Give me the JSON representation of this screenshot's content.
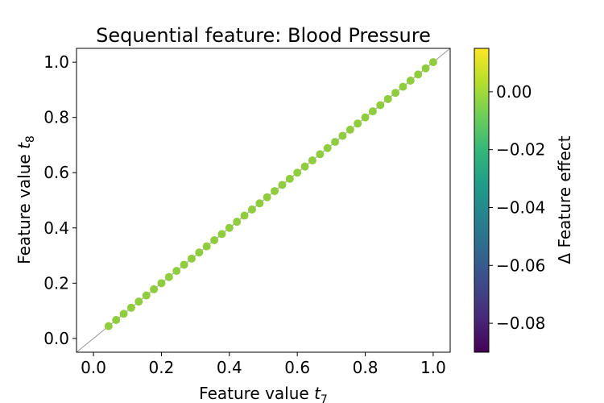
{
  "chart_data": {
    "type": "scatter",
    "title": "Sequential feature: Blood Pressure",
    "xlabel": {
      "main": "Feature value ",
      "italic": "t",
      "sub": "7"
    },
    "ylabel": {
      "main": "Feature value ",
      "italic": "t",
      "sub": "8"
    },
    "xlim": [
      -0.05,
      1.05
    ],
    "ylim": [
      -0.05,
      1.05
    ],
    "xticks": [
      "0.0",
      "0.2",
      "0.4",
      "0.6",
      "0.8",
      "1.0"
    ],
    "yticks": [
      "0.0",
      "0.2",
      "0.4",
      "0.6",
      "0.8",
      "1.0"
    ],
    "reference_line": "y = x",
    "grid": false,
    "marker_color": "#8fcd3e",
    "reference_line_color": "#999999",
    "points": [
      [
        0.0444,
        0.0444
      ],
      [
        0.0667,
        0.0667
      ],
      [
        0.0889,
        0.0889
      ],
      [
        0.1111,
        0.1111
      ],
      [
        0.1333,
        0.1333
      ],
      [
        0.1556,
        0.1556
      ],
      [
        0.1778,
        0.1778
      ],
      [
        0.2,
        0.2
      ],
      [
        0.2222,
        0.2222
      ],
      [
        0.2444,
        0.2444
      ],
      [
        0.2667,
        0.2667
      ],
      [
        0.2889,
        0.2889
      ],
      [
        0.3111,
        0.3111
      ],
      [
        0.3333,
        0.3333
      ],
      [
        0.3556,
        0.3556
      ],
      [
        0.3778,
        0.3778
      ],
      [
        0.4,
        0.4
      ],
      [
        0.4222,
        0.4222
      ],
      [
        0.4444,
        0.4444
      ],
      [
        0.4667,
        0.4667
      ],
      [
        0.4889,
        0.4889
      ],
      [
        0.5111,
        0.5111
      ],
      [
        0.5333,
        0.5333
      ],
      [
        0.5556,
        0.5556
      ],
      [
        0.5778,
        0.5778
      ],
      [
        0.6,
        0.6
      ],
      [
        0.6222,
        0.6222
      ],
      [
        0.6444,
        0.6444
      ],
      [
        0.6667,
        0.6667
      ],
      [
        0.6889,
        0.6889
      ],
      [
        0.7111,
        0.7111
      ],
      [
        0.7333,
        0.7333
      ],
      [
        0.7556,
        0.7556
      ],
      [
        0.7778,
        0.7778
      ],
      [
        0.8,
        0.8
      ],
      [
        0.8222,
        0.8222
      ],
      [
        0.8444,
        0.8444
      ],
      [
        0.8667,
        0.8667
      ],
      [
        0.8889,
        0.8889
      ],
      [
        0.9111,
        0.9111
      ],
      [
        0.9333,
        0.9333
      ],
      [
        0.9556,
        0.9556
      ],
      [
        0.9778,
        0.9778
      ],
      [
        1.0,
        1.0
      ]
    ],
    "colorbar": {
      "label": "Δ Feature effect",
      "range": [
        -0.09,
        0.015
      ],
      "colormap": "viridis",
      "ticks": [
        {
          "value": 0.0,
          "label": "0.00"
        },
        {
          "value": -0.02,
          "label": "−0.02"
        },
        {
          "value": -0.04,
          "label": "−0.04"
        },
        {
          "value": -0.06,
          "label": "−0.06"
        },
        {
          "value": -0.08,
          "label": "−0.08"
        }
      ],
      "gradient_colors": [
        "#440154",
        "#482878",
        "#3e4989",
        "#31688e",
        "#26828e",
        "#1f9e89",
        "#35b779",
        "#6ece58",
        "#b5de2b",
        "#fde725"
      ]
    }
  }
}
